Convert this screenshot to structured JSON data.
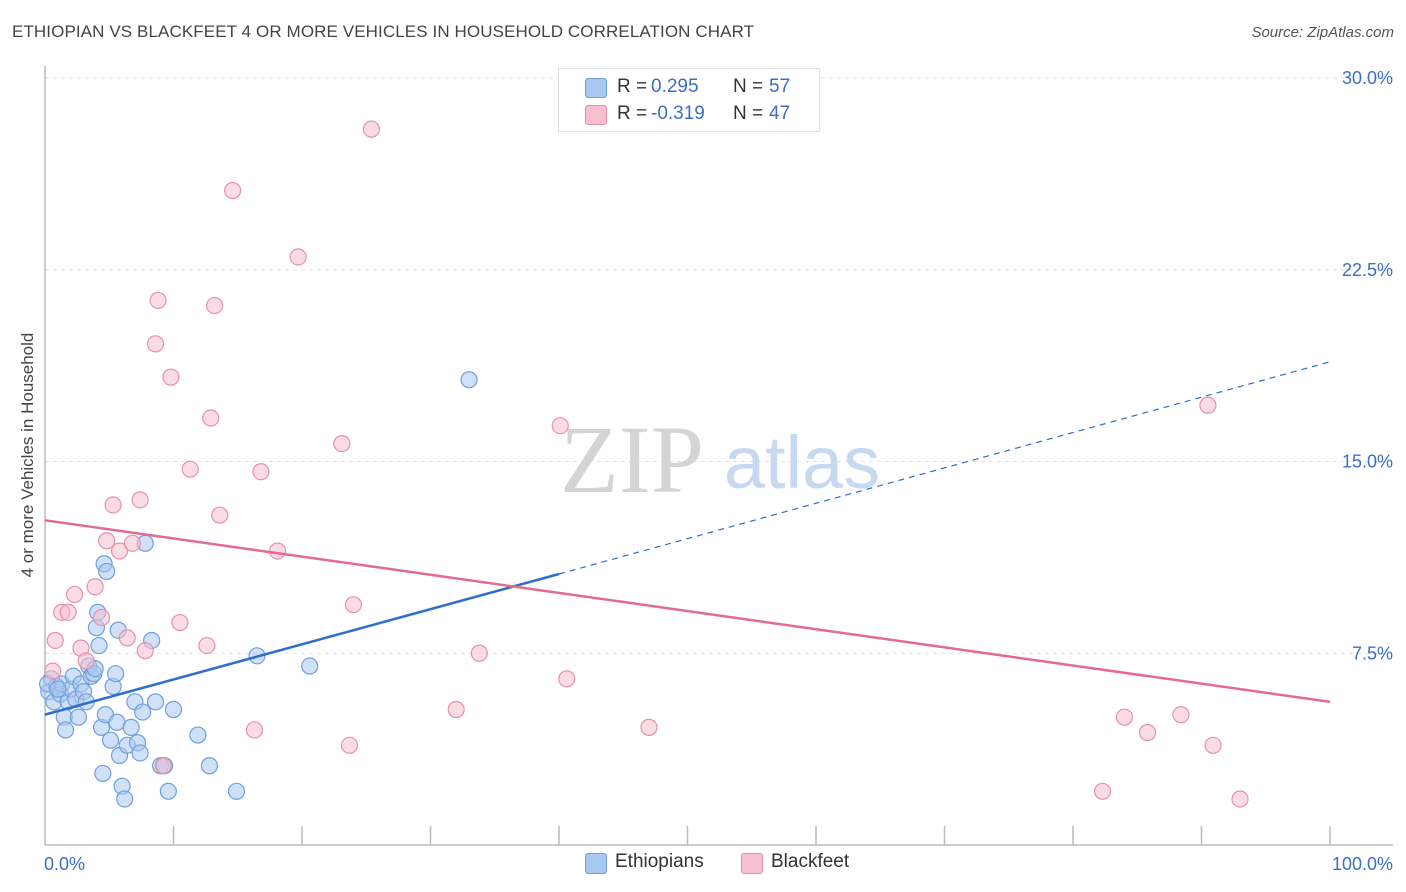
{
  "header": {
    "title": "ETHIOPIAN VS BLACKFEET 4 OR MORE VEHICLES IN HOUSEHOLD CORRELATION CHART",
    "source": "Source: ZipAtlas.com"
  },
  "watermark": {
    "zip": "ZIP",
    "atlas": "atlas"
  },
  "stats": [
    {
      "r_label": "R =",
      "r_value": "0.295",
      "n_label": "N =",
      "n_value": "57",
      "color": "#a9c8f0",
      "stroke": "#6f9fdc"
    },
    {
      "r_label": "R =",
      "r_value": "-0.319",
      "n_label": "N =",
      "n_value": "47",
      "color": "#f7bfd0",
      "stroke": "#e890ab"
    }
  ],
  "legend": [
    {
      "label": "Ethiopians",
      "color": "#a9c8f0",
      "stroke": "#6f9fdc"
    },
    {
      "label": "Blackfeet",
      "color": "#f7bfd0",
      "stroke": "#e890ab"
    }
  ],
  "chart_data": {
    "type": "scatter",
    "title": "ETHIOPIAN VS BLACKFEET 4 OR MORE VEHICLES IN HOUSEHOLD CORRELATION CHART",
    "xlabel": "",
    "ylabel": "4 or more Vehicles in Household",
    "xlim": [
      0,
      100
    ],
    "ylim": [
      0,
      30
    ],
    "x_tick_labels": [
      "0.0%",
      "100.0%"
    ],
    "y_ticks": [
      7.5,
      15.0,
      22.5,
      30.0
    ],
    "y_tick_labels": [
      "7.5%",
      "15.0%",
      "22.5%",
      "30.0%"
    ],
    "grid": "horizontal dashed",
    "legend_position": "bottom-center",
    "series": [
      {
        "name": "Ethiopians",
        "color": "#6f9fdc",
        "fill": "#a9c8f0",
        "trend_color": "#2e6fce",
        "trend": {
          "x0": 0,
          "y0": 5.1,
          "x1": 40,
          "y1": 10.6,
          "x_dashed_end": 100,
          "y_dashed_end": 18.9
        },
        "points": [
          [
            0.3,
            6.0
          ],
          [
            0.5,
            6.5
          ],
          [
            0.7,
            5.6
          ],
          [
            0.9,
            6.2
          ],
          [
            1.2,
            5.9
          ],
          [
            1.3,
            6.3
          ],
          [
            1.5,
            5.0
          ],
          [
            1.6,
            4.5
          ],
          [
            1.8,
            5.6
          ],
          [
            2.0,
            6.1
          ],
          [
            2.2,
            6.6
          ],
          [
            2.4,
            5.7
          ],
          [
            2.6,
            5.0
          ],
          [
            2.8,
            6.3
          ],
          [
            3.0,
            6.0
          ],
          [
            3.2,
            5.6
          ],
          [
            3.4,
            7.0
          ],
          [
            3.6,
            6.6
          ],
          [
            3.8,
            6.7
          ],
          [
            3.9,
            6.9
          ],
          [
            4.0,
            8.5
          ],
          [
            4.1,
            9.1
          ],
          [
            4.2,
            7.8
          ],
          [
            4.4,
            4.6
          ],
          [
            4.5,
            2.8
          ],
          [
            4.6,
            11.0
          ],
          [
            4.7,
            5.1
          ],
          [
            4.8,
            10.7
          ],
          [
            5.1,
            4.1
          ],
          [
            5.3,
            6.2
          ],
          [
            5.5,
            6.7
          ],
          [
            5.6,
            4.8
          ],
          [
            5.7,
            8.4
          ],
          [
            5.8,
            3.5
          ],
          [
            6.0,
            2.3
          ],
          [
            6.2,
            1.8
          ],
          [
            6.4,
            3.9
          ],
          [
            6.7,
            4.6
          ],
          [
            7.0,
            5.6
          ],
          [
            7.2,
            4.0
          ],
          [
            7.4,
            3.6
          ],
          [
            7.6,
            5.2
          ],
          [
            7.8,
            11.8
          ],
          [
            8.3,
            8.0
          ],
          [
            8.6,
            5.6
          ],
          [
            9.0,
            3.1
          ],
          [
            9.3,
            3.1
          ],
          [
            9.6,
            2.1
          ],
          [
            10.0,
            5.3
          ],
          [
            11.9,
            4.3
          ],
          [
            12.8,
            3.1
          ],
          [
            14.9,
            2.1
          ],
          [
            16.5,
            7.4
          ],
          [
            20.6,
            7.0
          ],
          [
            33.0,
            18.2
          ],
          [
            0.2,
            6.3
          ],
          [
            1.0,
            6.1
          ]
        ]
      },
      {
        "name": "Blackfeet",
        "color": "#e890ab",
        "fill": "#f7bfd0",
        "trend_color": "#e26a95",
        "trend": {
          "x0": 0,
          "y0": 12.7,
          "x1": 100,
          "y1": 5.6
        },
        "points": [
          [
            0.6,
            6.8
          ],
          [
            0.8,
            8.0
          ],
          [
            1.3,
            9.1
          ],
          [
            1.8,
            9.1
          ],
          [
            2.3,
            9.8
          ],
          [
            2.8,
            7.7
          ],
          [
            3.2,
            7.2
          ],
          [
            3.9,
            10.1
          ],
          [
            4.4,
            8.9
          ],
          [
            4.8,
            11.9
          ],
          [
            5.3,
            13.3
          ],
          [
            5.8,
            11.5
          ],
          [
            6.4,
            8.1
          ],
          [
            6.8,
            11.8
          ],
          [
            7.4,
            13.5
          ],
          [
            7.8,
            7.6
          ],
          [
            8.6,
            19.6
          ],
          [
            8.8,
            21.3
          ],
          [
            9.2,
            3.1
          ],
          [
            9.8,
            18.3
          ],
          [
            10.5,
            8.7
          ],
          [
            11.3,
            14.7
          ],
          [
            12.6,
            7.8
          ],
          [
            12.9,
            16.7
          ],
          [
            13.2,
            21.1
          ],
          [
            13.6,
            12.9
          ],
          [
            14.6,
            25.6
          ],
          [
            16.3,
            4.5
          ],
          [
            16.8,
            14.6
          ],
          [
            18.1,
            11.5
          ],
          [
            19.7,
            23.0
          ],
          [
            23.1,
            15.7
          ],
          [
            23.7,
            3.9
          ],
          [
            24.0,
            9.4
          ],
          [
            25.4,
            28.0
          ],
          [
            32.0,
            5.3
          ],
          [
            33.8,
            7.5
          ],
          [
            40.1,
            16.4
          ],
          [
            40.6,
            6.5
          ],
          [
            47.0,
            4.6
          ],
          [
            82.3,
            2.1
          ],
          [
            84.0,
            5.0
          ],
          [
            85.8,
            4.4
          ],
          [
            88.4,
            5.1
          ],
          [
            90.5,
            17.2
          ],
          [
            90.9,
            3.9
          ],
          [
            93.0,
            1.8
          ]
        ]
      }
    ]
  }
}
